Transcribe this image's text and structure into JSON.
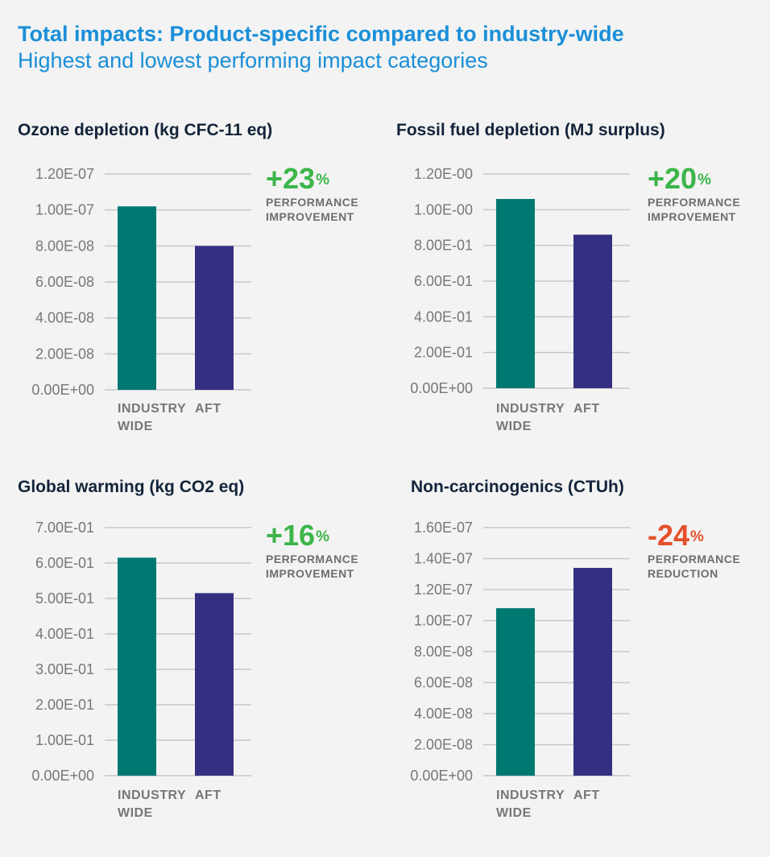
{
  "header": {
    "title": "Total impacts: Product-specific compared to industry-wide",
    "subtitle": "Highest and lowest performing impact categories"
  },
  "colors": {
    "industry": "#007872",
    "aft": "#352f82",
    "improvement": "#3cb54a",
    "reduction": "#e5502b",
    "grid": "#c8c8c8"
  },
  "chart_data": [
    {
      "type": "bar",
      "title": "Ozone depletion (kg CFC-11 eq)",
      "categories": [
        "INDUSTRY WIDE",
        "AFT"
      ],
      "values": [
        1.02e-07,
        8e-08
      ],
      "ylim": [
        0,
        1.2e-07
      ],
      "yticks": [
        "0.00E+00",
        "2.00E-08",
        "4.00E-08",
        "6.00E-08",
        "8.00E-08",
        "1.00E-07",
        "1.20E-07"
      ],
      "performance": {
        "value": "+23",
        "unit": "%",
        "label1": "PERFORMANCE",
        "label2": "IMPROVEMENT",
        "kind": "improvement"
      }
    },
    {
      "type": "bar",
      "title": "Fossil fuel depletion (MJ surplus)",
      "categories": [
        "INDUSTRY WIDE",
        "AFT"
      ],
      "values": [
        1.06,
        0.86
      ],
      "ylim": [
        0,
        1.2
      ],
      "yticks": [
        "0.00E+00",
        "2.00E-01",
        "4.00E-01",
        "6.00E-01",
        "8.00E-01",
        "1.00E-00",
        "1.20E-00"
      ],
      "performance": {
        "value": "+20",
        "unit": "%",
        "label1": "PERFORMANCE",
        "label2": "IMPROVEMENT",
        "kind": "improvement"
      }
    },
    {
      "type": "bar",
      "title": "Global warming (kg CO2 eq)",
      "categories": [
        "INDUSTRY WIDE",
        "AFT"
      ],
      "values": [
        0.615,
        0.515
      ],
      "ylim": [
        0,
        0.7
      ],
      "yticks": [
        "0.00E+00",
        "1.00E-01",
        "2.00E-01",
        "3.00E-01",
        "4.00E-01",
        "5.00E-01",
        "6.00E-01",
        "7.00E-01"
      ],
      "performance": {
        "value": "+16",
        "unit": "%",
        "label1": "PERFORMANCE",
        "label2": "IMPROVEMENT",
        "kind": "improvement"
      }
    },
    {
      "type": "bar",
      "title": "Non-carcinogenics (CTUh)",
      "categories": [
        "INDUSTRY WIDE",
        "AFT"
      ],
      "values": [
        1.08e-07,
        1.34e-07
      ],
      "ylim": [
        0,
        1.6e-07
      ],
      "yticks": [
        "0.00E+00",
        "2.00E-08",
        "4.00E-08",
        "6.00E-08",
        "8.00E-08",
        "1.00E-07",
        "1.20E-07",
        "1.40E-07",
        "1.60E-07"
      ],
      "performance": {
        "value": "-24",
        "unit": "%",
        "label1": "PERFORMANCE",
        "label2": "REDUCTION",
        "kind": "reduction"
      }
    }
  ]
}
